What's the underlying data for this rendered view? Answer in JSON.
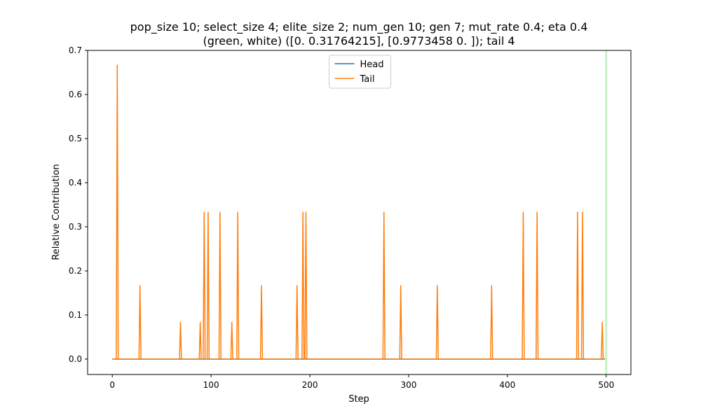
{
  "chart_data": {
    "type": "line",
    "title_lines": [
      "pop_size 10; select_size 4; elite_size 2; num_gen 10; gen 7; mut_rate 0.4; eta 0.4",
      "(green, white) ([0.         0.31764215], [0.9773458 0.       ]); tail 4"
    ],
    "xlabel": "Step",
    "ylabel": "Relative Contribution",
    "xlim": [
      -25,
      525
    ],
    "ylim": [
      -0.035,
      0.7
    ],
    "xticks": [
      0,
      100,
      200,
      300,
      400,
      500
    ],
    "yticks": [
      0.0,
      0.1,
      0.2,
      0.3,
      0.4,
      0.5,
      0.6,
      0.7
    ],
    "ytick_labels": [
      "0.0",
      "0.1",
      "0.2",
      "0.3",
      "0.4",
      "0.5",
      "0.6",
      "0.7"
    ],
    "grid": false,
    "legend_placement": "top-center",
    "vertical_line": {
      "x": 500,
      "color": "#c8f2c8"
    },
    "x_max": 500,
    "series": [
      {
        "name": "Head",
        "color": "#1f77b4",
        "spikes": []
      },
      {
        "name": "Tail",
        "color": "#ff7f0e",
        "spikes": [
          [
            5,
            0.6667
          ],
          [
            28,
            0.1667
          ],
          [
            69,
            0.0833
          ],
          [
            89,
            0.0833
          ],
          [
            93,
            0.3333
          ],
          [
            97,
            0.3333
          ],
          [
            109,
            0.3333
          ],
          [
            121,
            0.0833
          ],
          [
            127,
            0.3333
          ],
          [
            151,
            0.1667
          ],
          [
            187,
            0.1667
          ],
          [
            193,
            0.3333
          ],
          [
            196,
            0.3333
          ],
          [
            275,
            0.3333
          ],
          [
            292,
            0.1667
          ],
          [
            329,
            0.1667
          ],
          [
            384,
            0.1667
          ],
          [
            416,
            0.3333
          ],
          [
            430,
            0.3333
          ],
          [
            471,
            0.3333
          ],
          [
            476,
            0.3333
          ],
          [
            496,
            0.0833
          ]
        ]
      }
    ]
  }
}
